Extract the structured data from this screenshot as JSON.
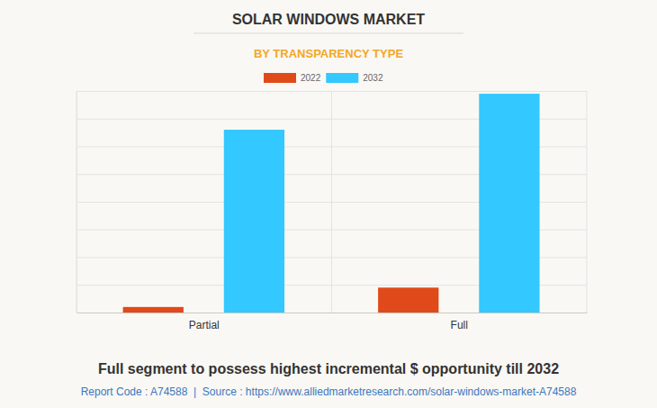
{
  "chart_data": {
    "type": "bar",
    "title": "SOLAR WINDOWS MARKET",
    "subtitle": "BY TRANSPARENCY TYPE",
    "categories": [
      "Partial",
      "Full"
    ],
    "series": [
      {
        "name": "2022",
        "color": "#e04a1a",
        "values": [
          0.2,
          0.9
        ]
      },
      {
        "name": "2032",
        "color": "#33c8ff",
        "values": [
          6.6,
          7.9
        ]
      }
    ],
    "ylim": [
      0,
      8
    ],
    "yticks": [
      0,
      1,
      2,
      3,
      4,
      5,
      6,
      7,
      8
    ],
    "grid": true,
    "legend": "top",
    "tick_labels": "x",
    "annotations": [
      "Full segment to possess highest incremental $ opportunity till 2032",
      "Report Code : A74588  |  Source : https://www.alliedmarketresearch.com/solar-windows-market-A74588"
    ]
  }
}
